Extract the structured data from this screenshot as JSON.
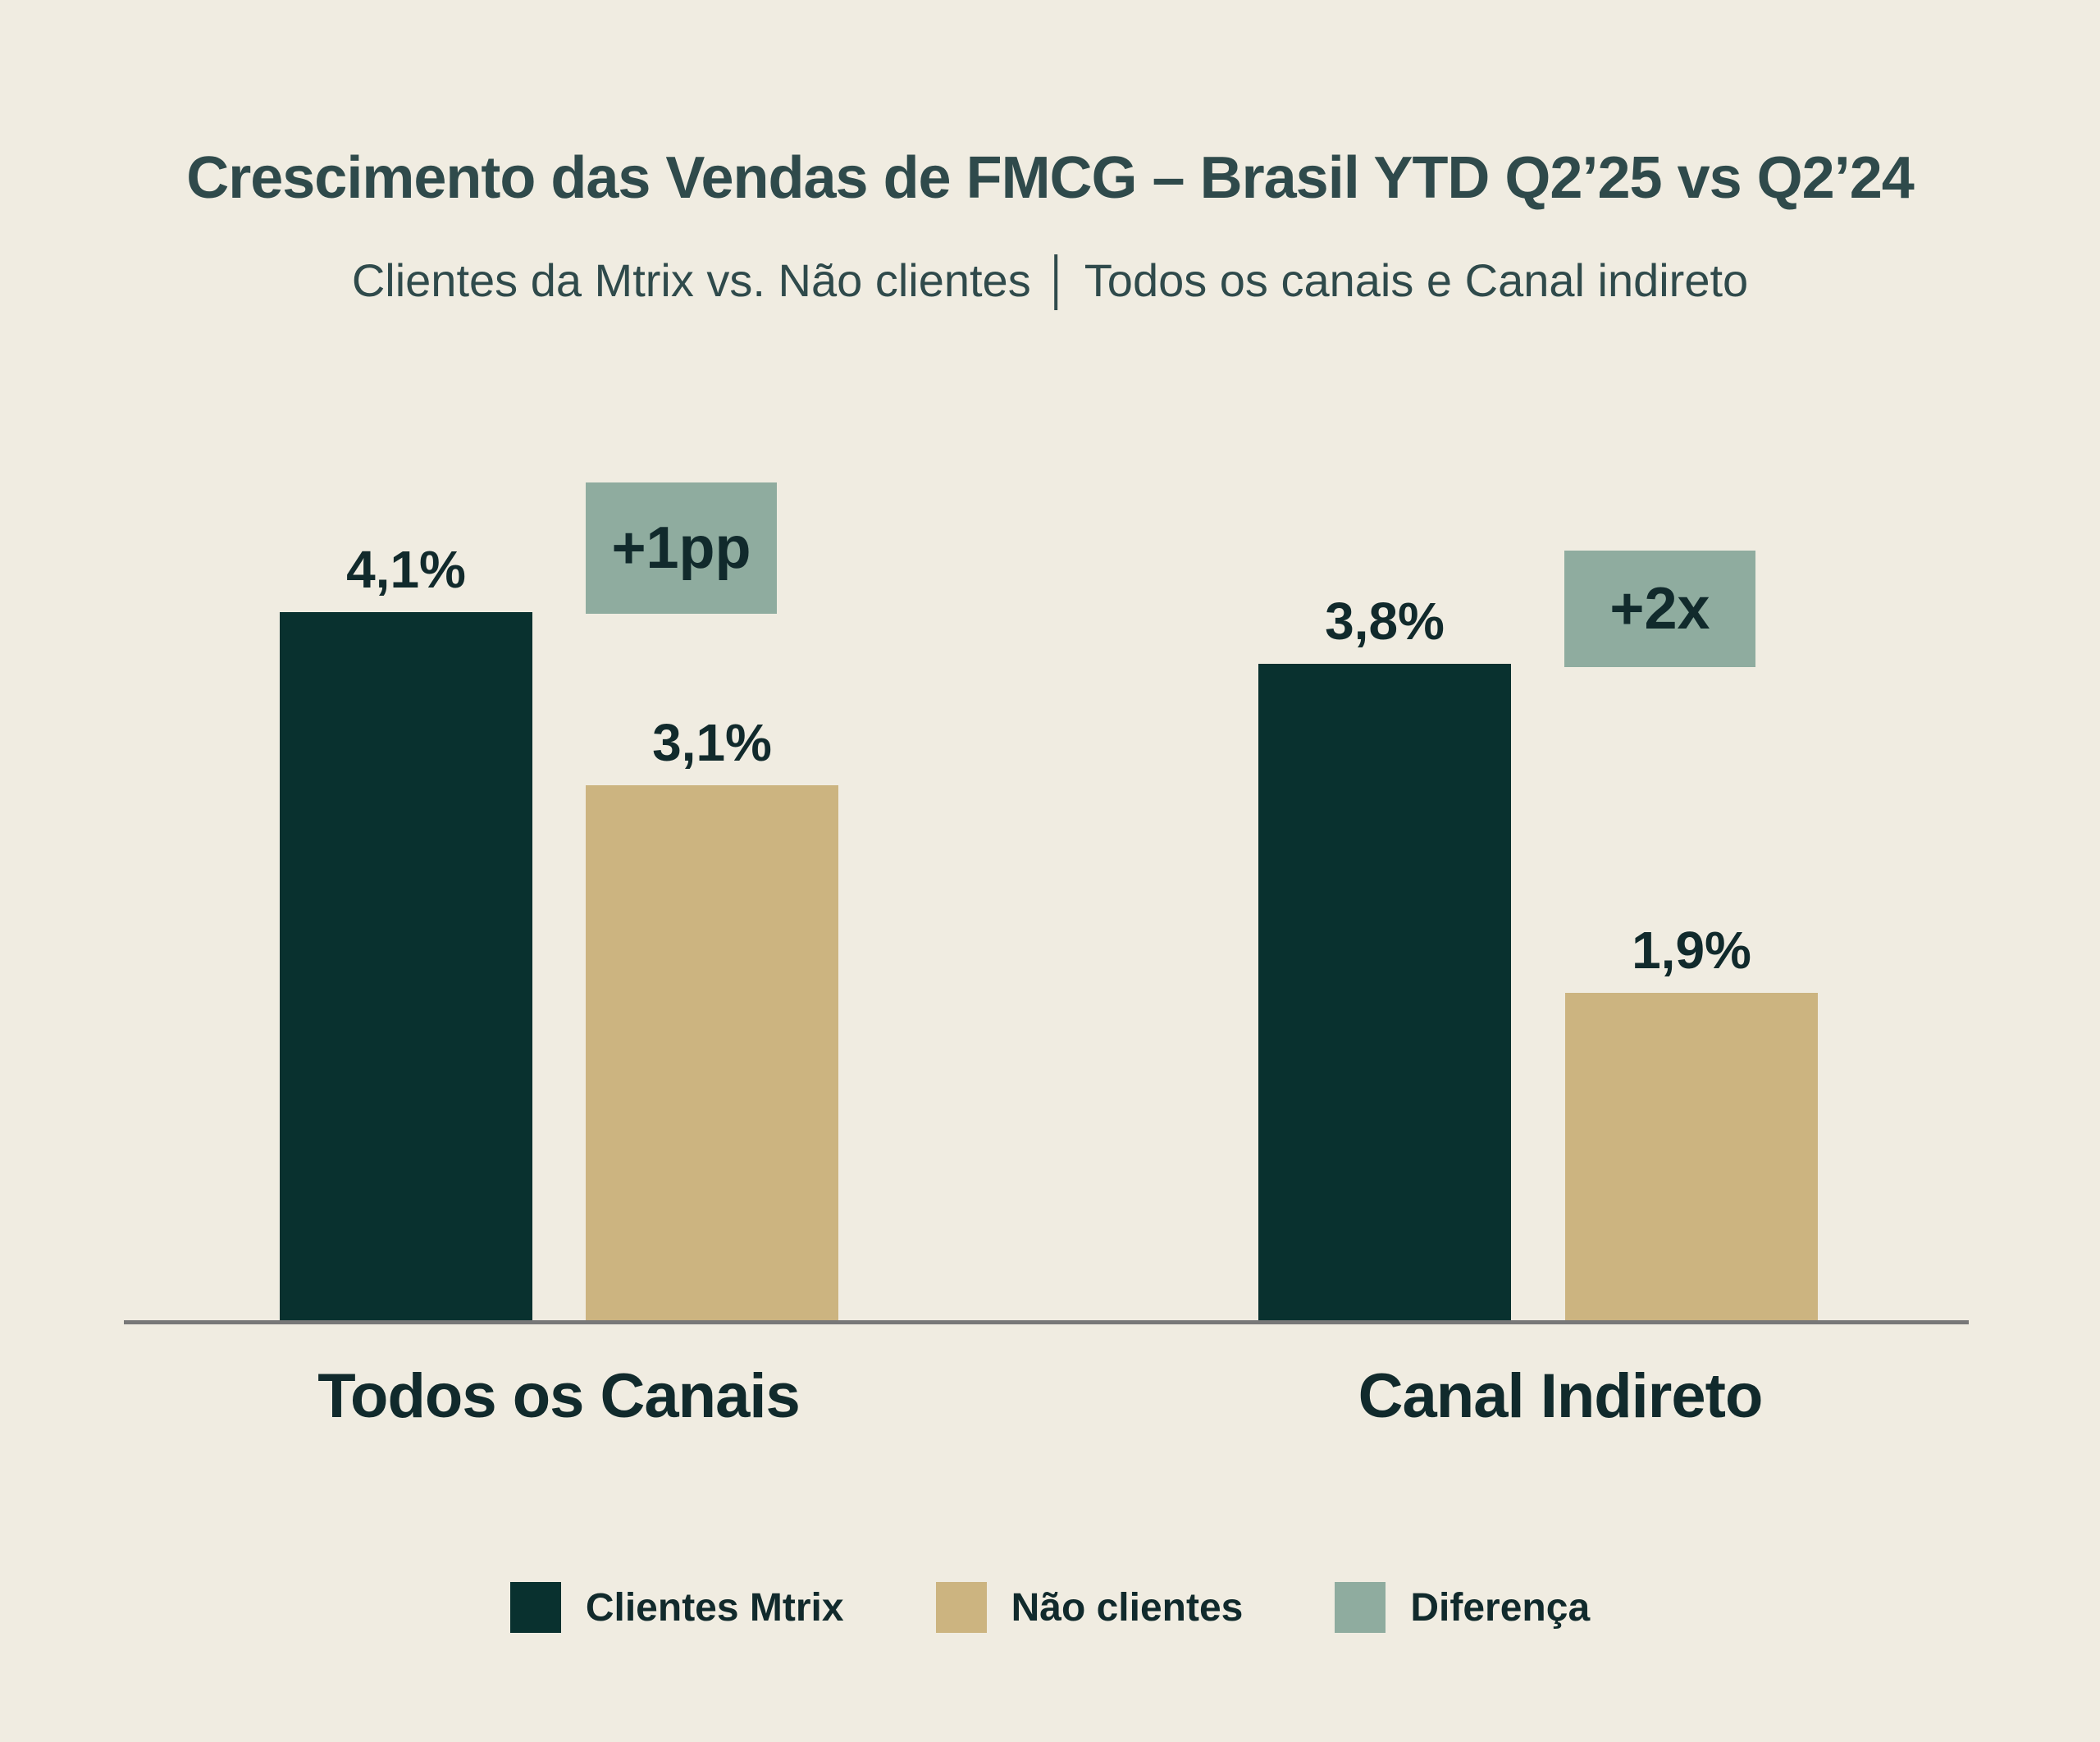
{
  "page": {
    "background": "#f0ece1"
  },
  "header": {
    "title": "Crescimento das Vendas de FMCG – Brasil YTD Q2’25 vs Q2’24",
    "subtitle": "Clientes da Mtrix vs. Não clientes │ Todos os canais e Canal indireto"
  },
  "colors": {
    "title_text": "#2f4a4b",
    "label_text": "#112a2c",
    "clientes_mtrix": "#09312f",
    "nao_clientes": "#ccb480",
    "diferenca": "#8fac9f",
    "axis_line": "#787878"
  },
  "chart_data": {
    "type": "bar",
    "title": "Crescimento das Vendas de FMCG – Brasil YTD Q2’25 vs Q2’24",
    "subtitle": "Clientes da Mtrix vs. Não clientes │ Todos os canais e Canal indireto",
    "categories": [
      "Todos os Canais",
      "Canal Indireto"
    ],
    "series": [
      {
        "name": "Clientes Mtrix",
        "values": [
          4.1,
          3.8
        ],
        "value_labels": [
          "4,1%",
          "3,8%"
        ],
        "color": "#09312f"
      },
      {
        "name": "Não clientes",
        "values": [
          3.1,
          1.9
        ],
        "value_labels": [
          "3,1%",
          "1,9%"
        ],
        "color": "#ccb480"
      }
    ],
    "difference_annotations": [
      {
        "category": "Todos os Canais",
        "label": "+1pp"
      },
      {
        "category": "Canal Indireto",
        "label": "+2x"
      }
    ],
    "xlabel": "",
    "ylabel": "",
    "ylim": [
      0,
      4.6
    ],
    "grid": false,
    "y_axis_visible": false,
    "legend_position": "bottom",
    "value_format": "percent, comma decimal separator"
  },
  "legend": {
    "items": [
      {
        "label": "Clientes Mtrix",
        "color": "#09312f"
      },
      {
        "label": "Não clientes",
        "color": "#ccb480"
      },
      {
        "label": "Diferença",
        "color": "#8fac9f"
      }
    ]
  }
}
